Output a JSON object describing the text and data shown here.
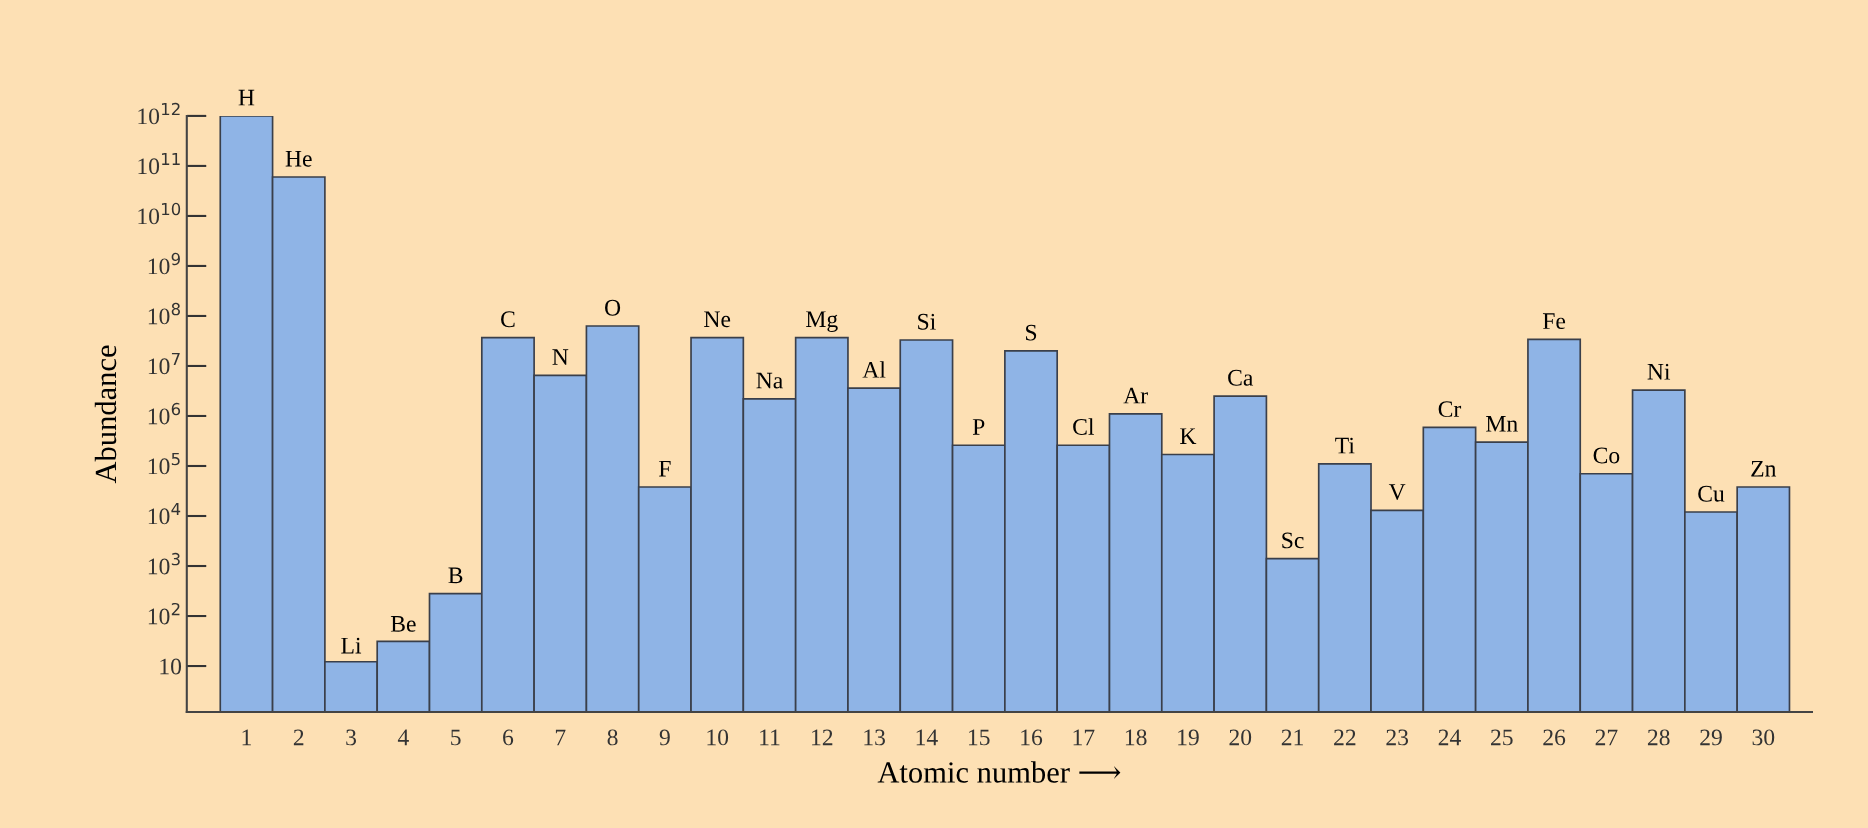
{
  "chart_data": {
    "type": "bar",
    "ylabel": "Abundance",
    "xlabel": "Atomic number ⟶",
    "categories": [
      "1",
      "2",
      "3",
      "4",
      "5",
      "6",
      "7",
      "8",
      "9",
      "10",
      "11",
      "12",
      "13",
      "14",
      "15",
      "16",
      "17",
      "18",
      "19",
      "20",
      "21",
      "22",
      "23",
      "24",
      "25",
      "26",
      "27",
      "28",
      "29",
      "30"
    ],
    "values": [
      1000000000000.0,
      60000000000.0,
      11,
      30,
      280,
      37000000.0,
      6500000.0,
      63000000.0,
      38000.0,
      37000000.0,
      2200000.0,
      37000000.0,
      3600000.0,
      33000000.0,
      260000.0,
      20000000.0,
      260000.0,
      1100000.0,
      170000.0,
      2500000.0,
      1400.0,
      110000.0,
      13000.0,
      590000.0,
      300000.0,
      34000000.0,
      70000.0,
      3300000.0,
      12000.0,
      38000.0
    ],
    "color": "#8fb4e6",
    "log": true,
    "ylim": [
      1.2,
      1000000000000.0
    ],
    "yticks": [
      10,
      {
        "value": 100,
        "label": "10$^{2}$"
      },
      {
        "value": 1000,
        "label": "10$^{3}$"
      },
      {
        "value": 10000.0,
        "label": "10$^{4}$"
      },
      {
        "value": 100000.0,
        "label": "10$^{5}$"
      },
      {
        "value": 1000000.0,
        "label": "10$^{6}$"
      },
      {
        "value": 10000000.0,
        "label": "10$^{7}$"
      },
      {
        "value": 100000000.0,
        "label": "10$^{8}$"
      },
      {
        "value": 1000000000.0,
        "label": "10$^{9}$"
      },
      {
        "value": 10000000000.0,
        "label": "10$^{10}$"
      },
      {
        "value": 100000000000.0,
        "label": "10$^{11}$"
      },
      {
        "value": 1000000000000.0,
        "label": "10$^{12}$"
      }
    ],
    "annotations": [
      {
        "text": "H",
        "x": "1",
        "y": 1000000000000.0
      },
      {
        "text": "He",
        "x": "2",
        "y": 60000000000.0
      },
      {
        "text": "Li",
        "x": "3",
        "y": 11
      },
      {
        "text": "Be",
        "x": "4",
        "y": 30
      },
      {
        "text": "B",
        "x": "5",
        "y": 280
      },
      {
        "text": "C",
        "x": "6",
        "y": 37000000.0
      },
      {
        "text": "N",
        "x": "7",
        "y": 6500000.0
      },
      {
        "text": "O",
        "x": "8",
        "y": 63000000.0
      },
      {
        "text": "F",
        "x": "9",
        "y": 38000.0
      },
      {
        "text": "Ne",
        "x": "10",
        "y": 37000000.0
      },
      {
        "text": "Na",
        "x": "11",
        "y": 2200000.0
      },
      {
        "text": "Mg",
        "x": "12",
        "y": 37000000.0
      },
      {
        "text": "Al",
        "x": "13",
        "y": 3600000.0
      },
      {
        "text": "Si",
        "x": "14",
        "y": 33000000.0
      },
      {
        "text": "P",
        "x": "15",
        "y": 260000.0
      },
      {
        "text": "S",
        "x": "16",
        "y": 20000000.0
      },
      {
        "text": "Cl",
        "x": "17",
        "y": 260000.0
      },
      {
        "text": "Ar",
        "x": "18",
        "y": 1100000.0
      },
      {
        "text": "K",
        "x": "19",
        "y": 170000.0
      },
      {
        "text": "Ca",
        "x": "20",
        "y": 2500000.0
      },
      {
        "text": "Sc",
        "x": "21",
        "y": 1400.0
      },
      {
        "text": "Ti",
        "x": "22",
        "y": 110000.0
      },
      {
        "text": "V",
        "x": "23",
        "y": 13000.0
      },
      {
        "text": "Cr",
        "x": "24",
        "y": 590000.0
      },
      {
        "text": "Mn",
        "x": "25",
        "y": 300000.0
      },
      {
        "text": "Fe",
        "x": "26",
        "y": 34000000.0
      },
      {
        "text": "Co",
        "x": "27",
        "y": 70000.0
      },
      {
        "text": "Ni",
        "x": "28",
        "y": 3300000.0
      },
      {
        "text": "Cu",
        "x": "29",
        "y": 12000.0
      },
      {
        "text": "Zn",
        "x": "30",
        "y": 38000.0
      }
    ],
    "grid": false,
    "legend": false
  }
}
